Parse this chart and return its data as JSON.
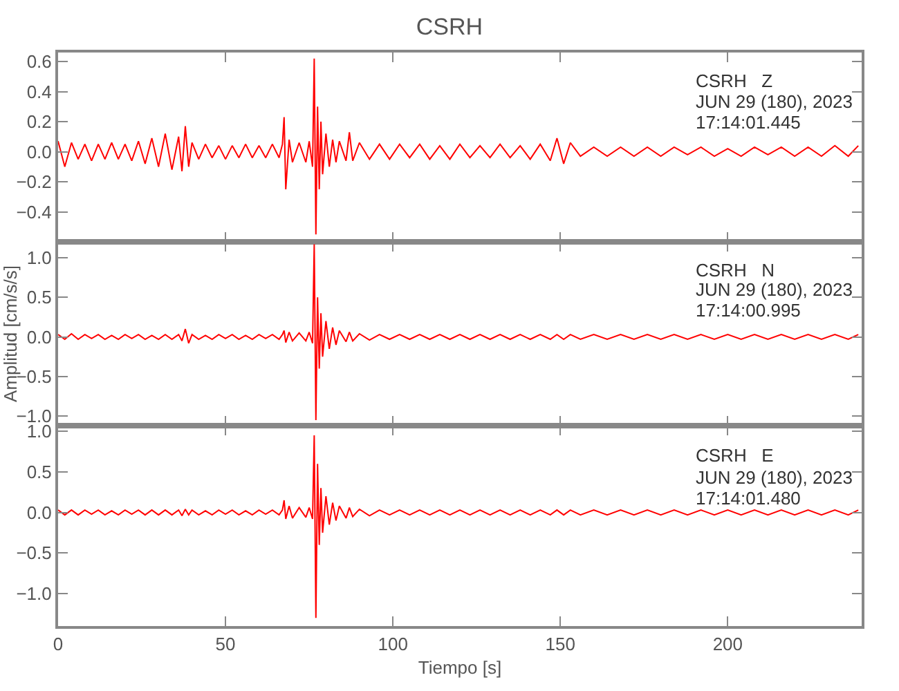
{
  "chart_data": [
    {
      "type": "line",
      "title": "CSRH",
      "annotations": [
        "CSRH   Z",
        "JUN 29 (180), 2023",
        "17:14:01.445"
      ],
      "tick_labels": "y",
      "xlim": [
        0,
        240
      ],
      "xticks": [
        0,
        50,
        100,
        150,
        200
      ],
      "ylim": [
        -0.6,
        0.66
      ],
      "yticks": [
        {
          "value": -0.4,
          "label": "−0.4"
        },
        {
          "value": -0.2,
          "label": "−0.2"
        },
        {
          "value": 0,
          "label": "0.0"
        },
        {
          "value": 0.2,
          "label": "0.2"
        },
        {
          "value": 0.4,
          "label": "0.4"
        },
        {
          "value": 0.6,
          "label": "0.6"
        }
      ],
      "x": [
        0,
        2,
        4,
        6,
        8,
        10,
        12,
        14,
        16,
        18,
        20,
        22,
        24,
        26,
        28,
        30,
        32,
        34,
        36,
        37,
        38,
        39,
        40,
        42,
        44,
        46,
        48,
        50,
        52,
        54,
        56,
        58,
        60,
        62,
        64,
        66,
        67,
        67.5,
        68,
        69,
        70,
        72,
        74,
        75,
        76,
        76.5,
        77,
        77.5,
        78,
        78.5,
        79,
        80,
        81,
        82,
        83,
        84,
        86,
        87,
        88,
        90,
        93,
        96,
        99,
        102,
        105,
        108,
        111,
        114,
        117,
        120,
        123,
        126,
        129,
        132,
        135,
        138,
        141,
        144,
        147,
        149,
        151,
        153,
        156,
        160,
        164,
        168,
        172,
        176,
        180,
        184,
        188,
        192,
        196,
        200,
        204,
        208,
        212,
        216,
        220,
        224,
        228,
        232,
        236,
        239
      ],
      "series": [
        {
          "color": "#ff0000",
          "values": [
            0.07,
            -0.1,
            0.06,
            -0.05,
            0.05,
            -0.06,
            0.05,
            -0.05,
            0.06,
            -0.05,
            0.05,
            -0.06,
            0.07,
            -0.08,
            0.09,
            -0.1,
            0.12,
            -0.12,
            0.1,
            -0.13,
            0.17,
            -0.1,
            0.06,
            -0.05,
            0.05,
            -0.04,
            0.04,
            -0.05,
            0.04,
            -0.04,
            0.05,
            -0.04,
            0.04,
            -0.04,
            0.05,
            -0.04,
            0.05,
            0.23,
            -0.25,
            0.08,
            -0.07,
            0.06,
            -0.07,
            0.07,
            -0.1,
            0.62,
            -0.55,
            0.3,
            -0.25,
            0.2,
            -0.15,
            0.12,
            -0.1,
            0.08,
            -0.07,
            0.07,
            -0.06,
            0.13,
            -0.06,
            0.06,
            -0.05,
            0.05,
            -0.05,
            0.05,
            -0.04,
            0.05,
            -0.05,
            0.04,
            -0.05,
            0.05,
            -0.04,
            0.04,
            -0.04,
            0.05,
            -0.04,
            0.04,
            -0.05,
            0.05,
            -0.06,
            0.09,
            -0.08,
            0.06,
            -0.03,
            0.03,
            -0.03,
            0.03,
            -0.03,
            0.03,
            -0.03,
            0.03,
            -0.02,
            0.03,
            -0.03,
            0.02,
            -0.03,
            0.03,
            -0.02,
            0.03,
            -0.03,
            0.03,
            -0.03,
            0.04,
            -0.03,
            0.04
          ]
        }
      ]
    },
    {
      "type": "line",
      "ylabel": "Amplitud [cm/s/s]",
      "annotations": [
        "CSRH   N",
        "JUN 29 (180), 2023",
        "17:14:00.995"
      ],
      "tick_labels": "y",
      "xlim": [
        0,
        240
      ],
      "xticks": [
        0,
        50,
        100,
        150,
        200
      ],
      "ylim": [
        -1.12,
        1.2
      ],
      "yticks": [
        {
          "value": -1,
          "label": "−1.0"
        },
        {
          "value": -0.5,
          "label": "−0.5"
        },
        {
          "value": 0,
          "label": "0.0"
        },
        {
          "value": 0.5,
          "label": "0.5"
        },
        {
          "value": 1,
          "label": "1.0"
        }
      ],
      "x": [
        0,
        2,
        4,
        6,
        8,
        10,
        12,
        14,
        16,
        18,
        20,
        22,
        24,
        26,
        28,
        30,
        32,
        34,
        36,
        37,
        38,
        39,
        40,
        42,
        44,
        46,
        48,
        50,
        52,
        54,
        56,
        58,
        60,
        62,
        64,
        66,
        67,
        67.5,
        68,
        69,
        70,
        72,
        74,
        75,
        76,
        76.5,
        77,
        77.5,
        78,
        78.5,
        79,
        80,
        81,
        82,
        83,
        84,
        86,
        87,
        88,
        90,
        93,
        96,
        99,
        102,
        105,
        108,
        111,
        114,
        117,
        120,
        123,
        126,
        129,
        132,
        135,
        138,
        141,
        144,
        147,
        149,
        151,
        153,
        156,
        160,
        164,
        168,
        172,
        176,
        180,
        184,
        188,
        192,
        196,
        200,
        204,
        208,
        212,
        216,
        220,
        224,
        228,
        232,
        236,
        239
      ],
      "series": [
        {
          "color": "#ff0000",
          "values": [
            0.03,
            -0.03,
            0.04,
            -0.03,
            0.03,
            -0.02,
            0.03,
            -0.03,
            0.02,
            -0.03,
            0.03,
            -0.02,
            0.03,
            -0.03,
            0.02,
            -0.03,
            0.03,
            -0.03,
            0.03,
            -0.05,
            0.1,
            -0.08,
            0.03,
            -0.03,
            0.02,
            -0.03,
            0.03,
            -0.02,
            0.03,
            -0.03,
            0.02,
            -0.03,
            0.03,
            -0.02,
            0.03,
            -0.03,
            0.03,
            0.08,
            -0.07,
            0.06,
            -0.05,
            0.05,
            -0.05,
            0.06,
            -0.08,
            1.17,
            -1.05,
            0.5,
            -0.4,
            0.3,
            -0.25,
            0.2,
            -0.15,
            0.12,
            -0.1,
            0.08,
            -0.06,
            0.06,
            -0.05,
            0.04,
            -0.04,
            0.03,
            -0.03,
            0.03,
            -0.03,
            0.03,
            -0.03,
            0.03,
            -0.03,
            0.03,
            -0.03,
            0.03,
            -0.03,
            0.03,
            -0.03,
            0.03,
            -0.03,
            0.03,
            -0.03,
            0.03,
            -0.03,
            0.03,
            -0.03,
            0.03,
            -0.03,
            0.03,
            -0.03,
            0.03,
            -0.03,
            0.03,
            -0.03,
            0.03,
            -0.03,
            0.03,
            -0.03,
            0.03,
            -0.03,
            0.03,
            -0.03,
            0.03,
            -0.03,
            0.03,
            -0.03,
            0.03
          ]
        }
      ]
    },
    {
      "type": "line",
      "xlabel": "Tiempo [s]",
      "annotations": [
        "CSRH   E",
        "JUN 29 (180), 2023",
        "17:14:01.480"
      ],
      "xlim": [
        0,
        240
      ],
      "xticks": [
        0,
        50,
        100,
        150,
        200
      ],
      "ylim": [
        -1.4,
        1.07
      ],
      "yticks": [
        {
          "value": -1,
          "label": "−1.0"
        },
        {
          "value": -0.5,
          "label": "−0.5"
        },
        {
          "value": 0,
          "label": "0.0"
        },
        {
          "value": 0.5,
          "label": "0.5"
        },
        {
          "value": 1,
          "label": "1.0"
        }
      ],
      "x": [
        0,
        2,
        4,
        6,
        8,
        10,
        12,
        14,
        16,
        18,
        20,
        22,
        24,
        26,
        28,
        30,
        32,
        34,
        36,
        37,
        38,
        39,
        40,
        42,
        44,
        46,
        48,
        50,
        52,
        54,
        56,
        58,
        60,
        62,
        64,
        66,
        67,
        67.5,
        68,
        69,
        70,
        72,
        74,
        75,
        76,
        76.5,
        77,
        77.5,
        78,
        78.5,
        79,
        80,
        81,
        82,
        83,
        84,
        86,
        87,
        88,
        90,
        93,
        96,
        99,
        102,
        105,
        108,
        111,
        114,
        117,
        120,
        123,
        126,
        129,
        132,
        135,
        138,
        141,
        144,
        147,
        149,
        151,
        153,
        156,
        160,
        164,
        168,
        172,
        176,
        180,
        184,
        188,
        192,
        196,
        200,
        204,
        208,
        212,
        216,
        220,
        224,
        228,
        232,
        236,
        239
      ],
      "series": [
        {
          "color": "#ff0000",
          "values": [
            0.03,
            -0.03,
            0.03,
            -0.03,
            0.03,
            -0.02,
            0.03,
            -0.03,
            0.02,
            -0.03,
            0.03,
            -0.02,
            0.03,
            -0.03,
            0.03,
            -0.03,
            0.03,
            -0.03,
            0.03,
            -0.04,
            0.04,
            -0.03,
            0.03,
            -0.03,
            0.02,
            -0.03,
            0.03,
            -0.02,
            0.03,
            -0.03,
            0.02,
            -0.03,
            0.03,
            -0.02,
            0.03,
            -0.03,
            0.03,
            0.15,
            -0.08,
            0.08,
            -0.07,
            0.06,
            -0.06,
            0.06,
            -0.08,
            0.95,
            -1.3,
            0.6,
            -0.4,
            0.3,
            -0.25,
            0.2,
            -0.15,
            0.12,
            -0.1,
            0.08,
            -0.07,
            0.06,
            -0.05,
            0.04,
            -0.04,
            0.03,
            -0.03,
            0.03,
            -0.03,
            0.03,
            -0.03,
            0.03,
            -0.03,
            0.03,
            -0.03,
            0.03,
            -0.03,
            0.03,
            -0.03,
            0.03,
            -0.03,
            0.03,
            -0.03,
            0.03,
            -0.03,
            0.03,
            -0.03,
            0.03,
            -0.03,
            0.03,
            -0.03,
            0.03,
            -0.03,
            0.03,
            -0.03,
            0.03,
            -0.03,
            0.03,
            -0.03,
            0.03,
            -0.03,
            0.03,
            -0.03,
            0.03,
            -0.03,
            0.03,
            -0.03,
            0.03
          ]
        }
      ]
    }
  ]
}
